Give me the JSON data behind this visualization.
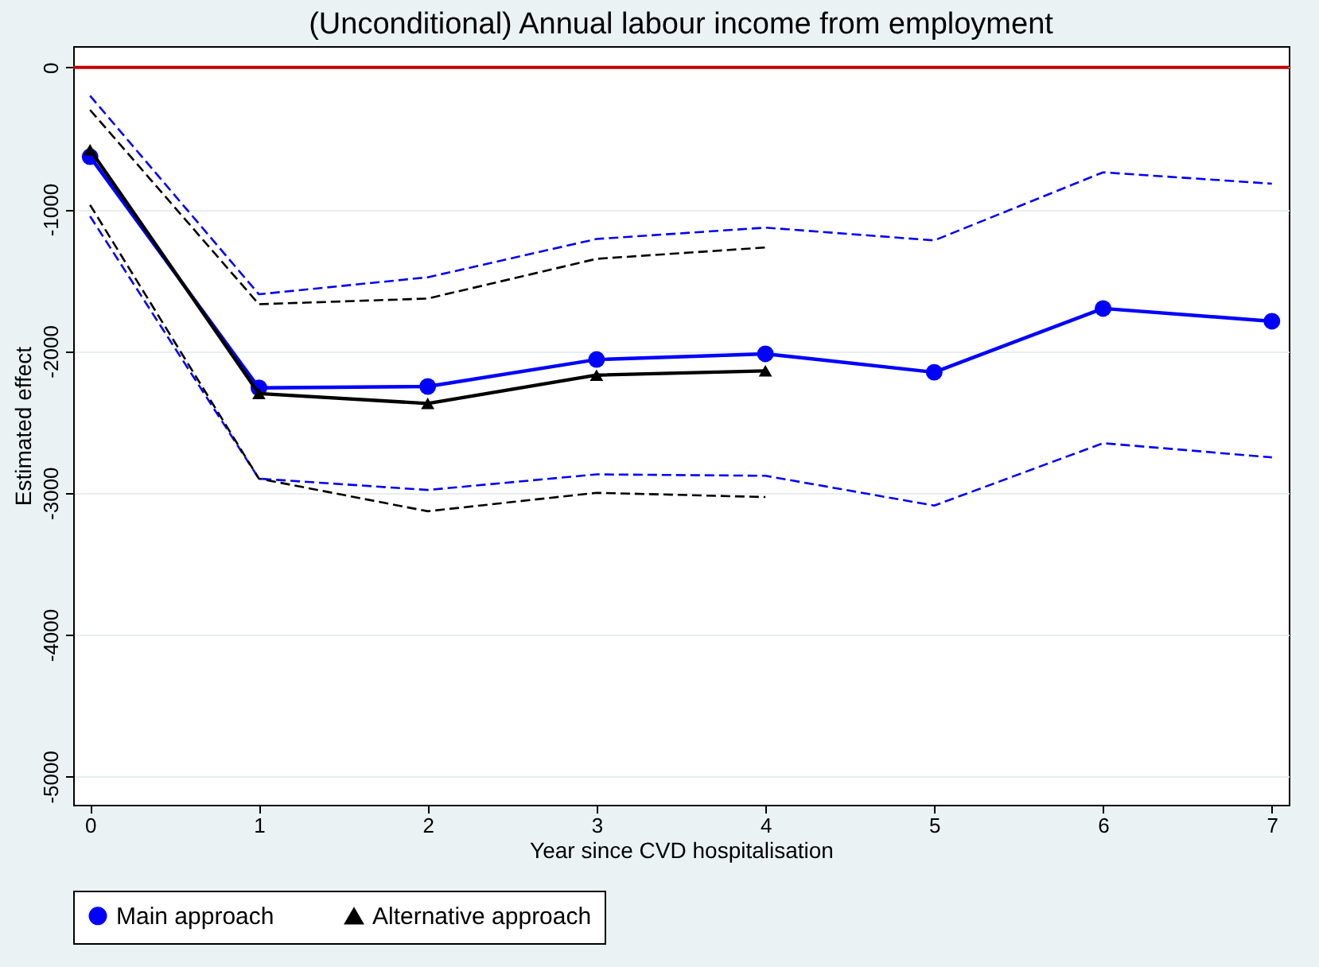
{
  "chart_data": {
    "type": "line",
    "title": "(Unconditional) Annual labour income from employment",
    "xlabel": "Year since CVD hospitalisation",
    "ylabel": "Estimated effect",
    "xlim": [
      -0.1,
      7.1
    ],
    "xticks": [
      0,
      1,
      2,
      3,
      4,
      5,
      6,
      7
    ],
    "ylim": [
      -5200,
      150
    ],
    "yticks": [
      0,
      -1000,
      -2000,
      -3000,
      -4000,
      -5000
    ],
    "grid": "y",
    "legend": "bottom",
    "ref_lines": [
      {
        "axis": "y",
        "value": 0,
        "color": "#c00000"
      }
    ],
    "series": [
      {
        "name": "Main approach",
        "color": "#0000ff",
        "marker": "circle",
        "line_style": "solid",
        "x": [
          0,
          1,
          2,
          3,
          4,
          5,
          6,
          7
        ],
        "values": [
          -630,
          -2260,
          -2250,
          -2060,
          -2020,
          -2150,
          -1700,
          -1790
        ]
      },
      {
        "color": "#0000ff",
        "marker": "none",
        "line_style": "dashed",
        "x": [
          0,
          1,
          2,
          3,
          4,
          5,
          6,
          7
        ],
        "values": [
          -200,
          -1600,
          -1480,
          -1210,
          -1130,
          -1220,
          -740,
          -820
        ]
      },
      {
        "color": "#0000ff",
        "marker": "none",
        "line_style": "dashed",
        "x": [
          0,
          1,
          2,
          3,
          4,
          5,
          6,
          7
        ],
        "values": [
          -1050,
          -2900,
          -2980,
          -2870,
          -2880,
          -3090,
          -2650,
          -2750
        ]
      },
      {
        "name": "Alternative approach",
        "color": "#000000",
        "marker": "triangle",
        "line_style": "solid",
        "x": [
          0,
          1,
          2,
          3,
          4
        ],
        "values": [
          -580,
          -2300,
          -2370,
          -2170,
          -2140
        ]
      },
      {
        "color": "#000000",
        "marker": "none",
        "line_style": "dashed",
        "x": [
          0,
          1,
          2,
          3,
          4
        ],
        "values": [
          -300,
          -1670,
          -1630,
          -1350,
          -1270
        ]
      },
      {
        "color": "#000000",
        "marker": "none",
        "line_style": "dashed",
        "x": [
          0,
          1,
          2,
          3,
          4
        ],
        "values": [
          -970,
          -2900,
          -3130,
          -3000,
          -3030
        ]
      }
    ]
  }
}
